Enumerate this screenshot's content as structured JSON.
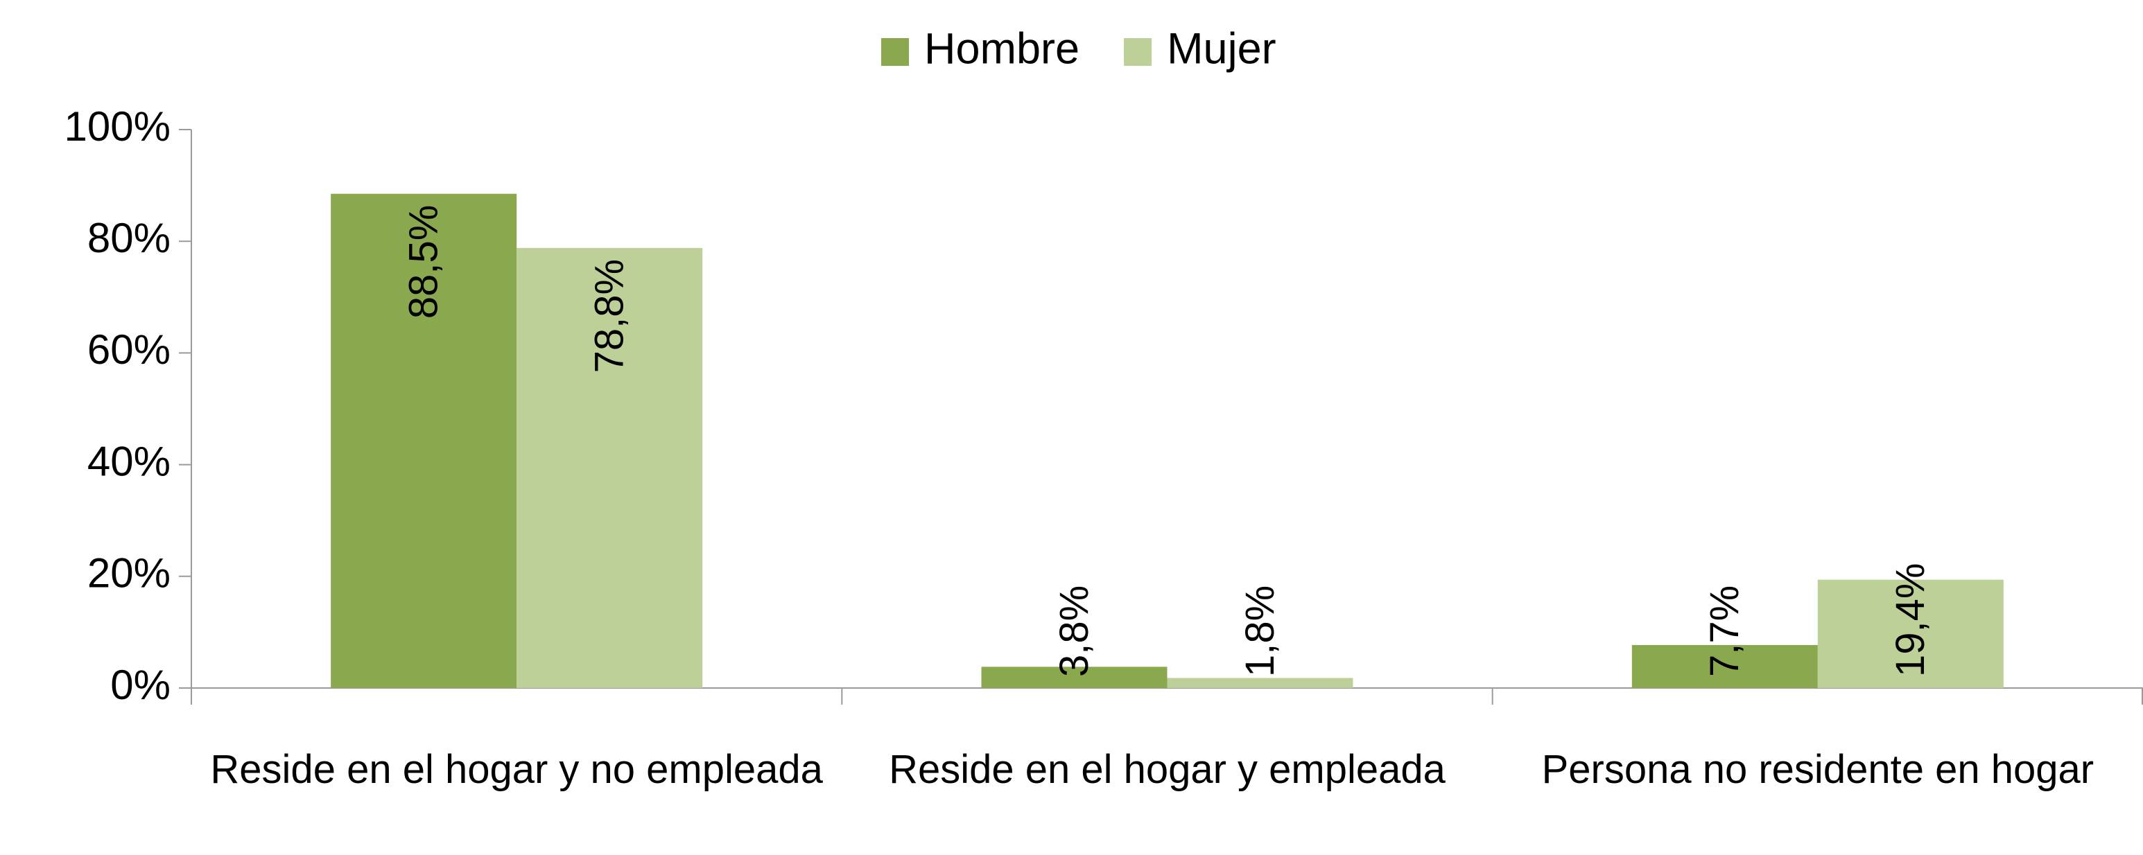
{
  "chart_data": {
    "type": "bar",
    "categories": [
      "Reside en el hogar y no empleada",
      "Reside en el hogar y empleada",
      "Persona no residente en hogar"
    ],
    "series": [
      {
        "name": "Hombre",
        "color": "#8aa84e",
        "values": [
          88.5,
          3.8,
          7.7
        ],
        "value_labels": [
          "88,5%",
          "3,8%",
          "7,7%"
        ]
      },
      {
        "name": "Mujer",
        "color": "#bcd097",
        "values": [
          78.8,
          1.8,
          19.4
        ],
        "value_labels": [
          "78,8%",
          "1,8%",
          "19,4%"
        ]
      }
    ],
    "ylim": [
      0,
      100
    ],
    "yticks": [
      {
        "value": 0,
        "label": "0%"
      },
      {
        "value": 20,
        "label": "20%"
      },
      {
        "value": 40,
        "label": "40%"
      },
      {
        "value": 60,
        "label": "60%"
      },
      {
        "value": 80,
        "label": "80%"
      },
      {
        "value": 100,
        "label": "100%"
      }
    ],
    "legend": "top"
  }
}
